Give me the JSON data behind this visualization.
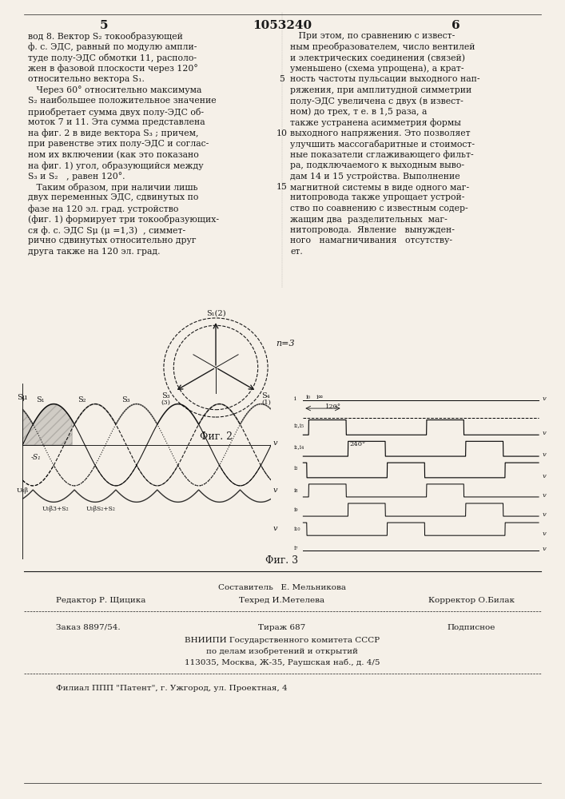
{
  "page_title": "1053240",
  "page_num_left": "5",
  "page_num_right": "6",
  "background_color": "#f5f0e8",
  "text_color": "#1a1a1a",
  "left_column_text": [
    "вод 8. Вектор S₂ токообразующей",
    "ф. с. ЭДС, равный по модулю ампли-",
    "туде полу-ЭДС обмотки 11, располо-",
    "жен в фазовой плоскости через 120°",
    "относительно вектора S₁.",
    "   Через 60° относительно максимума",
    "S₂ наибольшее положительное значение",
    "приобретает сумма двух полу-ЭДС об-",
    "моток 7 и 11. Эта сумма представлена",
    "на фиг. 2 в виде вектора S₃ ; причем,",
    "при равенстве этих полу-ЭДС и соглас-",
    "ном их включении (как это показано",
    "на фиг. 1) угол, образующийся между",
    "S₃ и S₂   , равен 120°.",
    "   Таким образом, при наличии лишь",
    "двух переменных ЭДС, сдвинутых по",
    "фазе на 120 эл. град. устройство",
    "(фиг. 1) формирует три токообразующих-",
    "ся ф. с. ЭДС Sμ (μ =1,3)  , симмет-",
    "рично сдвинутых относительно друг",
    "друга также на 120 эл. град."
  ],
  "right_column_text": [
    "   При этом, по сравнению с извест-",
    "ным преобразователем, число вентилей",
    "и электрических соединения (связей)",
    "уменьшено (схема упрощена), а крат-",
    "ность частоты пульсации выходного нап-",
    "ряжения, при амплитудной симметрии",
    "полу-ЭДС увеличена с двух (в извест-",
    "ном) до трех, т е. в 1,5 раза, а",
    "также устранена асимметрия формы",
    "выходного напряжения. Это позволяет",
    "улучшить массогабаритные и стоимост-",
    "ные показатели сглаживающего фильт-",
    "ра, подключаемого к выходным выво-",
    "дам 14 и 15 устройства. Выполнение",
    "магнитной системы в виде одного маг-",
    "нитопровода также упрощает устрой-",
    "ство по соавнению с известным содер-",
    "жащим два  разделительных  маг-",
    "нитопровода.  Явление   вынужден-",
    "ного   намагничивания   отсутству-",
    "ет."
  ],
  "fig2_label": "Φиг. 2",
  "fig3_label": "Φиг. 3",
  "n3_label": "n=3",
  "footer_line1": "Составитель   Е. Мельникова",
  "footer_editor": "Редактор Р. Щицика",
  "footer_tech": "Техред И.Метелева",
  "footer_corrector": "Корректор О.Билак",
  "footer_order": "Заказ 8897/54.",
  "footer_tirazh": "Тираж 687",
  "footer_podpisnoe": "Подписное",
  "footer_vnipi": "ВНИИПИ Государственного комитета СССР",
  "footer_po": "по делам изобретений и открытий",
  "footer_address": "113035, Москва, Ж-35, Раушская наб., д. 4/5",
  "footer_filial": "Филиал ППП \"Патент\", г. Ужгород, ул. Проектная, 4"
}
